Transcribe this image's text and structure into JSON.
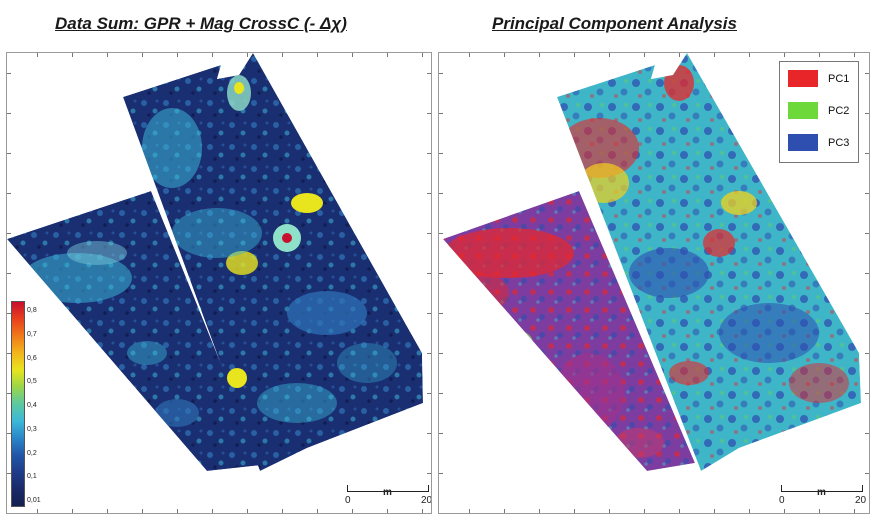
{
  "titles": {
    "left": "Data Sum: GPR + Mag CrossC (- Δχ)",
    "right": "Principal Component Analysis"
  },
  "colorbar": {
    "ticks": [
      "0,8",
      "0,7",
      "0,6",
      "0,5",
      "0,4",
      "0,3",
      "0,2",
      "0,1",
      "0,01"
    ],
    "colors": [
      "#c8102e",
      "#e8401c",
      "#f07a1a",
      "#f2b51c",
      "#e8e41e",
      "#9ad64a",
      "#5cc8a0",
      "#3cb8d8",
      "#2a86c8",
      "#2256a8",
      "#1e3c88",
      "#1a2a6a",
      "#14204e"
    ]
  },
  "scalebars": {
    "left": {
      "start": "0",
      "unit": "m",
      "end": "20"
    },
    "right": {
      "start": "0",
      "unit": "m",
      "end": "20"
    }
  },
  "pca_legend": [
    {
      "label": "PC1",
      "color": "#e8262a"
    },
    {
      "label": "PC2",
      "color": "#6cd83a"
    },
    {
      "label": "PC3",
      "color": "#2e4fb0"
    }
  ],
  "palette": {
    "left_base": "#1a2e72",
    "left_high": "#3ab5d6",
    "right_pc1": "#e8262a",
    "right_pc2": "#6cd83a",
    "right_pc3": "#2e4fb0",
    "right_cyan": "#3fb6c8",
    "right_magenta": "#a2308a"
  }
}
